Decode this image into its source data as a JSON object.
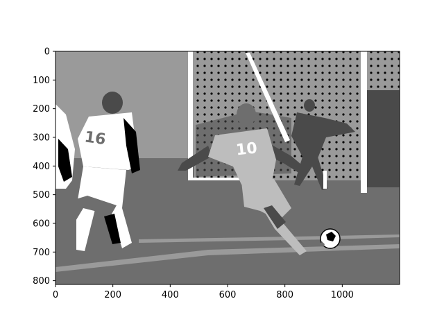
{
  "chart_data": {
    "type": "image",
    "title": "",
    "xlabel": "",
    "ylabel": "",
    "image_width": 1200,
    "image_height": 813,
    "xlim": [
      0,
      1200
    ],
    "ylim": [
      813,
      0
    ],
    "x_ticks": [
      0,
      200,
      400,
      600,
      800,
      1000
    ],
    "y_ticks": [
      0,
      100,
      200,
      300,
      400,
      500,
      600,
      700,
      800
    ],
    "grid": false,
    "colormap": "gray",
    "content": "posterized grayscale photo of a soccer match: player 10 kicking ball near goal net, player 16 in white on left"
  },
  "scene": {
    "jersey_numbers": [
      "16",
      "10"
    ]
  },
  "colors": {
    "black": "#000000",
    "dark": "#4a4a4a",
    "mid": "#6e6e6e",
    "light_mid": "#9a9a9a",
    "light": "#bdbdbd",
    "white": "#ffffff"
  }
}
